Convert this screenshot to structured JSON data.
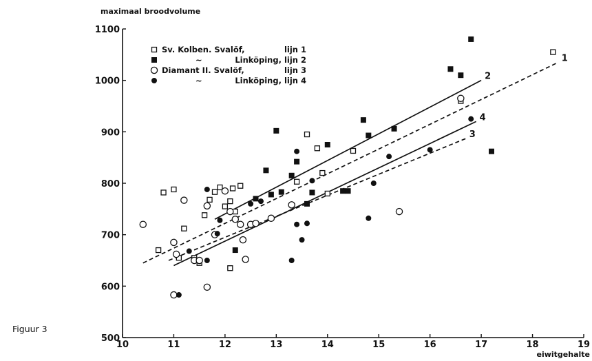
{
  "caption": "Figuur 3",
  "chart_data": {
    "type": "scatter",
    "ylabel": "maximaal broodvolume",
    "xlabel": "eiwitgehalte",
    "xlim": [
      10,
      19
    ],
    "ylim": [
      500,
      1100
    ],
    "x_ticks": [
      10,
      11,
      12,
      13,
      14,
      15,
      16,
      17,
      18,
      19
    ],
    "y_ticks": [
      500,
      600,
      700,
      800,
      900,
      1000,
      1100
    ],
    "grid": false,
    "legend_position": "top-left",
    "legend": [
      {
        "marker": "open-square",
        "variety": "Sv. Kolben. Svalöf,",
        "line": "lijn 1"
      },
      {
        "marker": "filled-square",
        "variety": "~",
        "line": "Linköping, lijn 2"
      },
      {
        "marker": "open-circle",
        "variety": "Diamant II. Svalöf,",
        "line": "lijn 3"
      },
      {
        "marker": "filled-circle",
        "variety": "~",
        "line": "Linköping, lijn 4"
      }
    ],
    "series": [
      {
        "marker": "open-square",
        "points": [
          [
            10.7,
            670
          ],
          [
            10.8,
            782
          ],
          [
            11.0,
            788
          ],
          [
            11.1,
            655
          ],
          [
            11.2,
            712
          ],
          [
            11.4,
            655
          ],
          [
            11.5,
            645
          ],
          [
            11.6,
            738
          ],
          [
            11.7,
            768
          ],
          [
            11.8,
            783
          ],
          [
            11.9,
            792
          ],
          [
            12.0,
            755
          ],
          [
            12.1,
            765
          ],
          [
            12.15,
            790
          ],
          [
            12.2,
            745
          ],
          [
            12.3,
            795
          ],
          [
            12.1,
            635
          ],
          [
            13.4,
            803
          ],
          [
            13.6,
            895
          ],
          [
            13.8,
            868
          ],
          [
            13.9,
            820
          ],
          [
            14.0,
            780
          ],
          [
            14.5,
            863
          ],
          [
            16.6,
            960
          ],
          [
            18.4,
            1055
          ]
        ]
      },
      {
        "marker": "filled-square",
        "points": [
          [
            12.2,
            670
          ],
          [
            12.6,
            770
          ],
          [
            12.8,
            825
          ],
          [
            12.9,
            778
          ],
          [
            13.0,
            902
          ],
          [
            13.1,
            783
          ],
          [
            13.3,
            815
          ],
          [
            13.4,
            842
          ],
          [
            13.6,
            760
          ],
          [
            13.7,
            782
          ],
          [
            14.0,
            875
          ],
          [
            14.3,
            785
          ],
          [
            14.4,
            785
          ],
          [
            14.7,
            923
          ],
          [
            14.8,
            893
          ],
          [
            15.3,
            906
          ],
          [
            16.4,
            1022
          ],
          [
            16.6,
            1010
          ],
          [
            16.8,
            1080
          ],
          [
            17.2,
            862
          ]
        ]
      },
      {
        "marker": "open-circle",
        "points": [
          [
            10.4,
            720
          ],
          [
            11.0,
            685
          ],
          [
            11.05,
            662
          ],
          [
            11.0,
            583
          ],
          [
            11.2,
            767
          ],
          [
            11.4,
            650
          ],
          [
            11.5,
            650
          ],
          [
            11.65,
            756
          ],
          [
            11.65,
            598
          ],
          [
            11.8,
            700
          ],
          [
            12.0,
            785
          ],
          [
            12.1,
            745
          ],
          [
            12.2,
            730
          ],
          [
            12.3,
            720
          ],
          [
            12.35,
            690
          ],
          [
            12.4,
            652
          ],
          [
            12.5,
            720
          ],
          [
            12.6,
            722
          ],
          [
            12.9,
            732
          ],
          [
            13.3,
            758
          ],
          [
            15.4,
            745
          ],
          [
            16.6,
            965
          ]
        ]
      },
      {
        "marker": "filled-circle",
        "points": [
          [
            11.1,
            583
          ],
          [
            11.3,
            668
          ],
          [
            11.65,
            650
          ],
          [
            11.65,
            788
          ],
          [
            11.85,
            702
          ],
          [
            11.9,
            728
          ],
          [
            12.5,
            760
          ],
          [
            12.7,
            765
          ],
          [
            13.3,
            650
          ],
          [
            13.4,
            862
          ],
          [
            13.4,
            720
          ],
          [
            13.5,
            690
          ],
          [
            13.6,
            722
          ],
          [
            13.7,
            805
          ],
          [
            14.8,
            732
          ],
          [
            14.9,
            800
          ],
          [
            15.2,
            852
          ],
          [
            16.0,
            865
          ],
          [
            16.8,
            925
          ]
        ]
      }
    ],
    "lines": [
      {
        "label": "1",
        "style": "dashed",
        "x": [
          10.4,
          18.5
        ],
        "y": [
          645,
          1035
        ]
      },
      {
        "label": "2",
        "style": "solid",
        "x": [
          11.8,
          17.0
        ],
        "y": [
          730,
          1000
        ]
      },
      {
        "label": "3",
        "style": "dashed",
        "x": [
          10.9,
          16.7
        ],
        "y": [
          650,
          887
        ]
      },
      {
        "label": "4",
        "style": "solid",
        "x": [
          11.0,
          16.9
        ],
        "y": [
          640,
          920
        ]
      }
    ]
  }
}
